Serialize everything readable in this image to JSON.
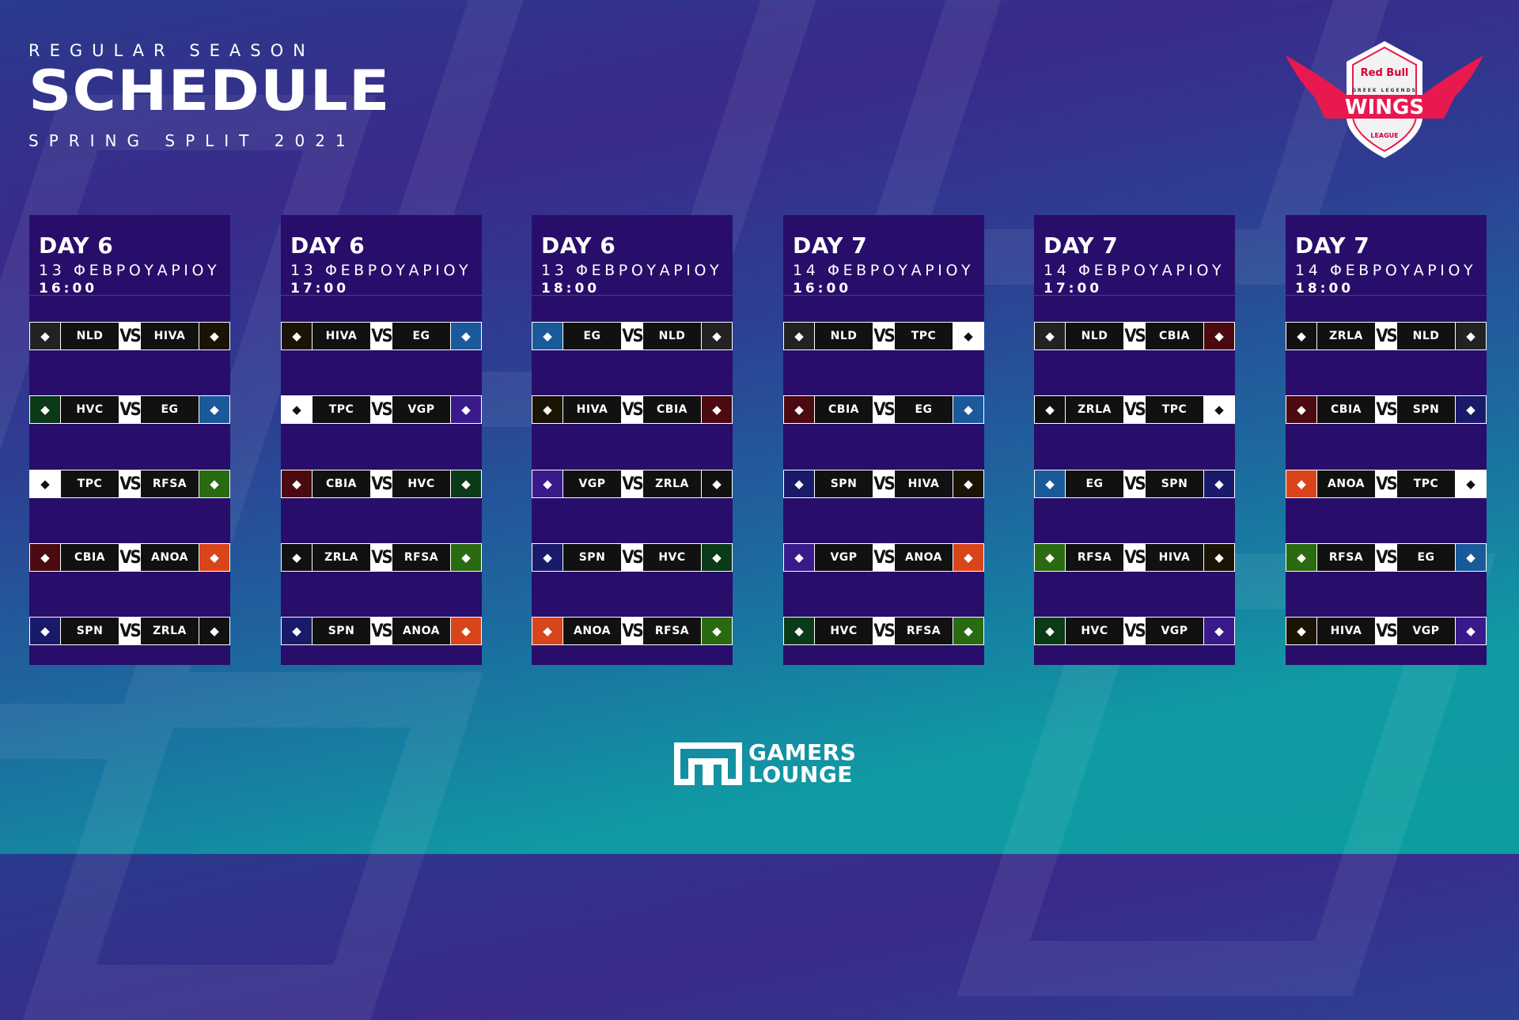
{
  "header": {
    "kicker": "REGULAR SEASON",
    "title": "SCHEDULE",
    "subtitle": "SPRING SPLIT 2021"
  },
  "league_logo": {
    "brand": "Red Bull",
    "top": "GREEK LEGENDS",
    "name": "WINGS",
    "bottom": "LEAGUE",
    "accent": "#e8194f"
  },
  "sponsor_logo": {
    "line1": "GAMERS",
    "line2": "LOUNGE"
  },
  "vs_label": "VS",
  "team_colors": {
    "NLD": "#222222",
    "HIVA": "#1a1405",
    "HVC": "#0a3a18",
    "EG": "#1a5a9a",
    "TPC": "#ffffff",
    "RFSA": "#2a6a10",
    "CBIA": "#4a0a10",
    "ANOA": "#d8451a",
    "SPN": "#1a1a6a",
    "ZRLA": "#111111",
    "VGP": "#3a1a8a"
  },
  "columns": [
    {
      "day": "DAY 6",
      "date": "13 ΦΕΒΡΟΥΑΡΙΟΥ",
      "time": "16:00",
      "matches": [
        [
          "NLD",
          "HIVA"
        ],
        [
          "HVC",
          "EG"
        ],
        [
          "TPC",
          "RFSA"
        ],
        [
          "CBIA",
          "ANOA"
        ],
        [
          "SPN",
          "ZRLA"
        ]
      ]
    },
    {
      "day": "DAY 6",
      "date": "13 ΦΕΒΡΟΥΑΡΙΟΥ",
      "time": "17:00",
      "matches": [
        [
          "HIVA",
          "EG"
        ],
        [
          "TPC",
          "VGP"
        ],
        [
          "CBIA",
          "HVC"
        ],
        [
          "ZRLA",
          "RFSA"
        ],
        [
          "SPN",
          "ANOA"
        ]
      ]
    },
    {
      "day": "DAY 6",
      "date": "13 ΦΕΒΡΟΥΑΡΙΟΥ",
      "time": "18:00",
      "matches": [
        [
          "EG",
          "NLD"
        ],
        [
          "HIVA",
          "CBIA"
        ],
        [
          "VGP",
          "ZRLA"
        ],
        [
          "SPN",
          "HVC"
        ],
        [
          "ANOA",
          "RFSA"
        ]
      ]
    },
    {
      "day": "DAY 7",
      "date": "14 ΦΕΒΡΟΥΑΡΙΟΥ",
      "time": "16:00",
      "matches": [
        [
          "NLD",
          "TPC"
        ],
        [
          "CBIA",
          "EG"
        ],
        [
          "SPN",
          "HIVA"
        ],
        [
          "VGP",
          "ANOA"
        ],
        [
          "HVC",
          "RFSA"
        ]
      ]
    },
    {
      "day": "DAY 7",
      "date": "14 ΦΕΒΡΟΥΑΡΙΟΥ",
      "time": "17:00",
      "matches": [
        [
          "NLD",
          "CBIA"
        ],
        [
          "ZRLA",
          "TPC"
        ],
        [
          "EG",
          "SPN"
        ],
        [
          "RFSA",
          "HIVA"
        ],
        [
          "HVC",
          "VGP"
        ]
      ]
    },
    {
      "day": "DAY 7",
      "date": "14 ΦΕΒΡΟΥΑΡΙΟΥ",
      "time": "18:00",
      "matches": [
        [
          "ZRLA",
          "NLD"
        ],
        [
          "CBIA",
          "SPN"
        ],
        [
          "ANOA",
          "TPC"
        ],
        [
          "RFSA",
          "EG"
        ],
        [
          "HIVA",
          "VGP"
        ]
      ]
    }
  ]
}
